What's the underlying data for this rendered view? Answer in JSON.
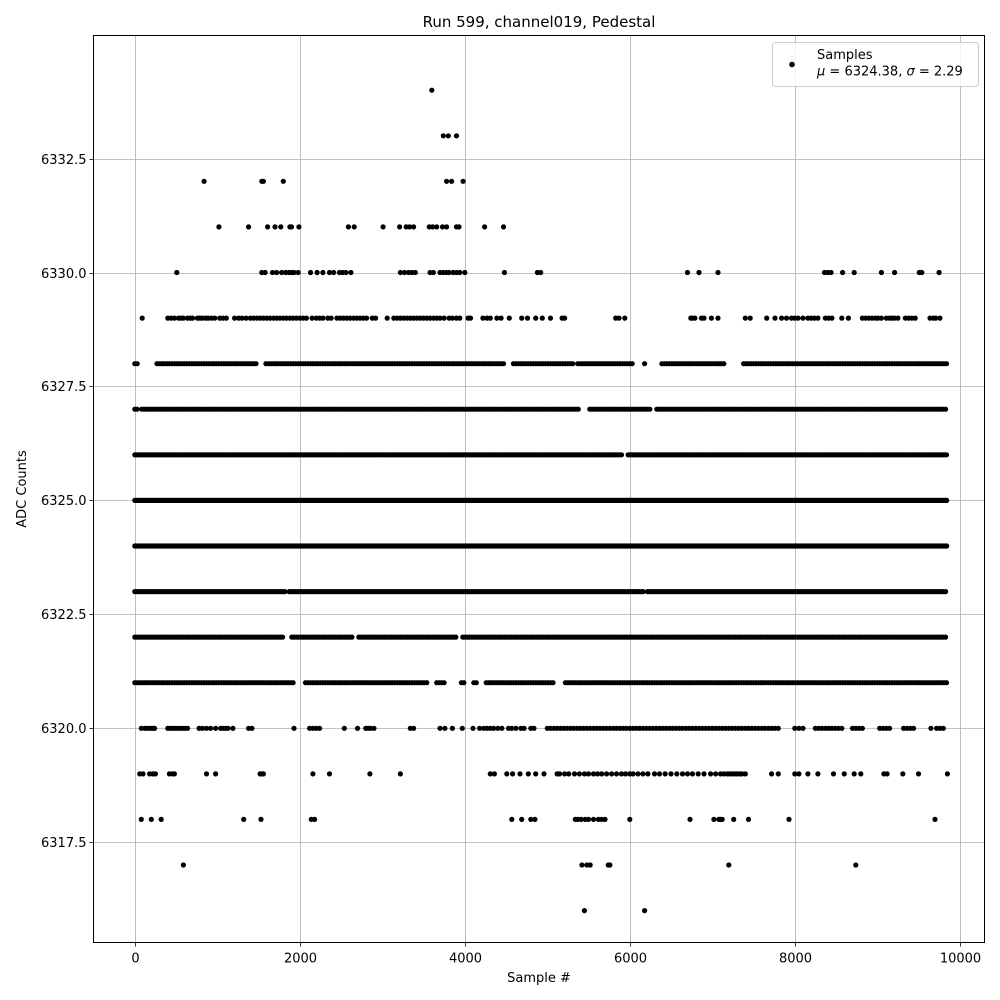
{
  "chart_data": {
    "type": "scatter",
    "title": "Run 599, channel019, Pedestal",
    "xlabel": "Sample #",
    "ylabel": "ADC Counts",
    "xlim": [
      -500,
      10300
    ],
    "ylim": [
      6315.3,
      6335.2
    ],
    "x_ticks": [
      0,
      2000,
      4000,
      6000,
      8000,
      10000
    ],
    "x_tick_labels": [
      "0",
      "2000",
      "4000",
      "6000",
      "8000",
      "10000"
    ],
    "y_ticks": [
      6317.5,
      6320.0,
      6322.5,
      6325.0,
      6327.5,
      6330.0,
      6332.5
    ],
    "y_tick_labels": [
      "6317.5",
      "6320.0",
      "6322.5",
      "6325.0",
      "6327.5",
      "6330.0",
      "6332.5"
    ],
    "grid": true,
    "legend": {
      "placement": "top-right",
      "label": "Samples",
      "mu_symbol": "μ",
      "mu_text": " = 6324.38, ",
      "sigma_symbol": "σ",
      "sigma_text": " = 2.29"
    },
    "series": [
      {
        "name": "Samples",
        "color": "#000000",
        "x_range": [
          0,
          9850
        ],
        "mean": 6324.38,
        "std": 2.29,
        "levels": [
          {
            "y": 6316,
            "x": [
              5450,
              6180
            ]
          },
          {
            "y": 6317,
            "x": [
              590,
              5420,
              5480,
              5520,
              5740,
              5760,
              7200,
              8740
            ]
          },
          {
            "y": 6318,
            "x": [
              80,
              200,
              320,
              1320,
              1530,
              2140,
              2180,
              4570,
              4690,
              4800,
              4850,
              5340,
              5370,
              5410,
              5460,
              5500,
              5560,
              5620,
              5660,
              5700,
              6000,
              6730,
              7020,
              7080,
              7100,
              7120,
              7260,
              7440,
              7930,
              9700
            ]
          },
          {
            "y": 6319,
            "x": [
              60,
              100,
              180,
              220,
              250,
              420,
              460,
              480,
              870,
              980,
              1520,
              1540,
              1560,
              2160,
              2360,
              2850,
              3220,
              4310,
              4360,
              4510,
              4580,
              4670,
              4770,
              4860,
              4960,
              5120,
              5150,
              5210,
              5260,
              5330,
              5390,
              5450,
              5500,
              5560,
              5610,
              5660,
              5720,
              5780,
              5840,
              5900,
              5950,
              6000,
              6040,
              6100,
              6160,
              6220,
              6300,
              6360,
              6430,
              6500,
              6570,
              6640,
              6700,
              6760,
              6830,
              6900,
              6980,
              7040,
              7100,
              7140,
              7180,
              7210,
              7240,
              7270,
              7300,
              7330,
              7360,
              7400,
              7720,
              7800,
              8000,
              8050,
              8160,
              8280,
              8470,
              8600,
              8720,
              8800,
              9080,
              9120,
              9310,
              9500,
              9850
            ]
          },
          {
            "y": 6320,
            "x": [
              80,
              120,
              150,
              180,
              200,
              220,
              240,
              400,
              430,
              460,
              490,
              520,
              550,
              580,
              610,
              640,
              780,
              820,
              870,
              920,
              980,
              1040,
              1070,
              1100,
              1130,
              1190,
              1380,
              1420,
              1930,
              2120,
              2160,
              2200,
              2240,
              2540,
              2700,
              2800,
              2830,
              2860,
              2900,
              3340,
              3380,
              3700,
              3760,
              3850,
              3970,
              4100,
              4180,
              4230,
              4270,
              4310,
              4350,
              4400,
              4450,
              4530,
              4570,
              4620,
              4680,
              4720,
              4800,
              4840,
              5000,
              5040,
              5080,
              5120,
              5160,
              5200,
              5240,
              5280,
              5320,
              5360,
              5400,
              5440,
              5480,
              5520,
              5560,
              5600,
              5640,
              5680,
              5720,
              5760,
              5800,
              5840,
              5880,
              5920,
              5960,
              6000,
              6040,
              6080,
              6120,
              6160,
              6200,
              6240,
              6280,
              6320,
              6360,
              6400,
              6440,
              6480,
              6520,
              6560,
              6600,
              6640,
              6680,
              6720,
              6760,
              6800,
              6840,
              6880,
              6920,
              6960,
              7000,
              7040,
              7080,
              7120,
              7160,
              7200,
              7240,
              7280,
              7320,
              7360,
              7400,
              7440,
              7480,
              7520,
              7560,
              7600,
              7640,
              7680,
              7720,
              7760,
              7800,
              8000,
              8050,
              8100,
              8250,
              8290,
              8330,
              8370,
              8410,
              8450,
              8490,
              8530,
              8570,
              8700,
              8740,
              8780,
              8820,
              9030,
              9070,
              9110,
              9150,
              9320,
              9360,
              9400,
              9440,
              9650,
              9720,
              9760,
              9800
            ]
          },
          {
            "y": 6321,
            "step": 30,
            "gaps": [
              [
                1950,
                2050
              ],
              [
                3550,
                3640
              ],
              [
                3760,
                3950
              ],
              [
                4000,
                4080
              ],
              [
                4150,
                4250
              ],
              [
                5100,
                5200
              ]
            ]
          },
          {
            "y": 6322,
            "step": 28,
            "gaps": [
              [
                1820,
                1900
              ],
              [
                2650,
                2700
              ],
              [
                3900,
                3960
              ]
            ]
          },
          {
            "y": 6323,
            "step": 26,
            "gaps": [
              [
                1840,
                1870
              ],
              [
                6180,
                6200
              ]
            ]
          },
          {
            "y": 6324,
            "step": 14,
            "gaps": []
          },
          {
            "y": 6325,
            "step": 14,
            "gaps": []
          },
          {
            "y": 6326,
            "step": 20,
            "gaps": [
              [
                5920,
                5960
              ]
            ]
          },
          {
            "y": 6327,
            "step": 28,
            "gaps": [
              [
                30,
                70
              ],
              [
                5400,
                5500
              ],
              [
                6250,
                6300
              ]
            ]
          },
          {
            "y": 6328,
            "step": 30,
            "gaps": [
              [
                60,
                240
              ],
              [
                1500,
                1560
              ],
              [
                4500,
                4560
              ],
              [
                5320,
                5350
              ],
              [
                6050,
                6170
              ],
              [
                6200,
                6380
              ],
              [
                7150,
                7350
              ]
            ]
          },
          {
            "y": 6329,
            "x": [
              90,
              400,
              440,
              480,
              530,
              560,
              590,
              640,
              670,
              700,
              760,
              790,
              820,
              860,
              890,
              930,
              970,
              1030,
              1070,
              1110,
              1210,
              1260,
              1300,
              1350,
              1400,
              1440,
              1480,
              1520,
              1560,
              1600,
              1640,
              1680,
              1720,
              1760,
              1800,
              1840,
              1880,
              1920,
              1960,
              2000,
              2040,
              2080,
              2150,
              2200,
              2240,
              2280,
              2340,
              2380,
              2450,
              2490,
              2530,
              2570,
              2610,
              2650,
              2690,
              2730,
              2770,
              2810,
              2880,
              2920,
              3060,
              3140,
              3180,
              3220,
              3260,
              3300,
              3340,
              3380,
              3420,
              3460,
              3500,
              3540,
              3580,
              3620,
              3660,
              3700,
              3750,
              3810,
              3850,
              3900,
              3940,
              4040,
              4070,
              4220,
              4270,
              4310,
              4390,
              4440,
              4540,
              4690,
              4760,
              4860,
              4940,
              5040,
              5180,
              5210,
              5830,
              5870,
              5940,
              6740,
              6760,
              6790,
              6870,
              6900,
              6990,
              7070,
              7400,
              7460,
              7660,
              7760,
              7840,
              7900,
              7960,
              8000,
              8040,
              8100,
              8160,
              8200,
              8240,
              8280,
              8370,
              8410,
              8450,
              8570,
              8650,
              8820,
              8860,
              8900,
              8940,
              8980,
              9010,
              9050,
              9110,
              9150,
              9180,
              9210,
              9250,
              9340,
              9380,
              9420,
              9460,
              9640,
              9680,
              9710,
              9760
            ]
          },
          {
            "y": 6330,
            "x": [
              510,
              1540,
              1580,
              1670,
              1720,
              1780,
              1830,
              1870,
              1900,
              1930,
              1980,
              2130,
              2210,
              2280,
              2360,
              2410,
              2480,
              2520,
              2560,
              2620,
              3220,
              3270,
              3320,
              3360,
              3400,
              3580,
              3620,
              3700,
              3740,
              3780,
              3810,
              3860,
              3900,
              3940,
              4000,
              4480,
              4880,
              4920,
              6700,
              6840,
              7070,
              8360,
              8400,
              8440,
              8580,
              8720,
              9050,
              9210,
              9510,
              9540,
              9750
            ]
          },
          {
            "y": 6331,
            "x": [
              1020,
              1380,
              1610,
              1700,
              1770,
              1880,
              1900,
              1990,
              2590,
              2660,
              3010,
              3210,
              3290,
              3330,
              3380,
              3570,
              3610,
              3660,
              3730,
              3780,
              3900,
              3930,
              4240,
              4470
            ]
          },
          {
            "y": 6332,
            "x": [
              840,
              1540,
              1560,
              1800,
              3780,
              3840,
              3980
            ]
          },
          {
            "y": 6333,
            "x": [
              3740,
              3800,
              3900
            ]
          },
          {
            "y": 6334,
            "x": [
              3600
            ]
          }
        ]
      }
    ]
  }
}
